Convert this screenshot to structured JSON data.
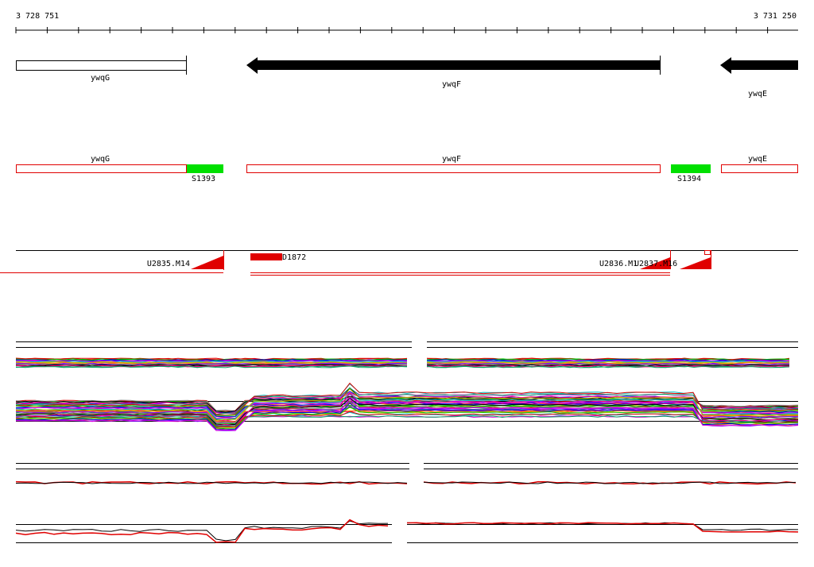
{
  "ruler": {
    "start": "3 728 751",
    "end": "3 731 250"
  },
  "genes": [
    {
      "label": "ywqG"
    },
    {
      "label": "ywqF"
    },
    {
      "label": "ywqE"
    }
  ],
  "annotations": [
    {
      "label": "ywqG"
    },
    {
      "label": "ywqF"
    },
    {
      "label": "ywqE"
    }
  ],
  "segments": [
    {
      "label": "S1393"
    },
    {
      "label": "S1394"
    }
  ],
  "features": [
    {
      "label": "U2835.M14"
    },
    {
      "label": "D1872"
    },
    {
      "label": "U2836.M1"
    },
    {
      "label": "U2837.M16"
    }
  ]
}
